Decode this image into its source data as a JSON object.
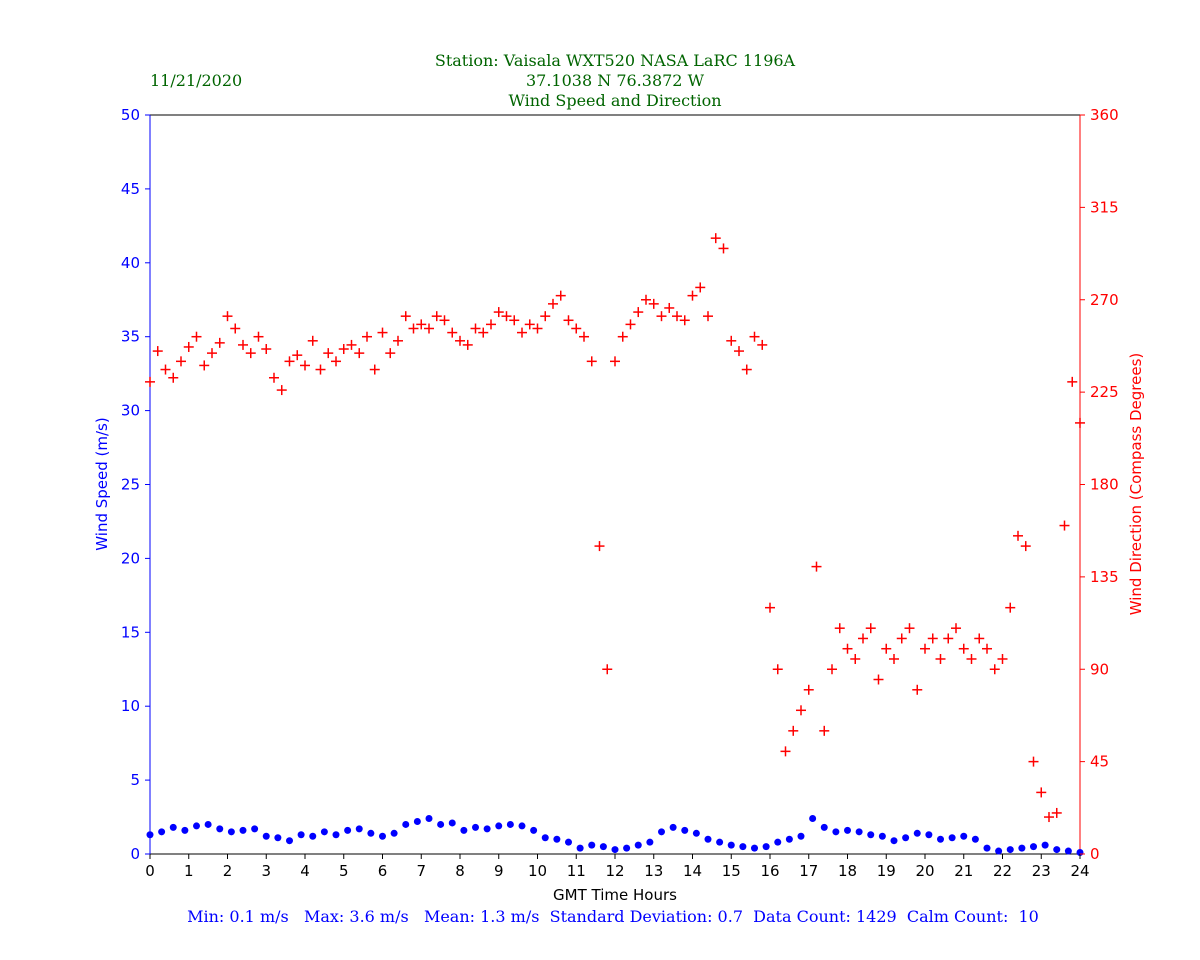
{
  "header": {
    "date": "11/21/2020",
    "title_line1": "Station:  Vaisala WXT520  NASA LaRC 1196A",
    "title_line2": "37.1038 N 76.3872 W",
    "title_line3": "Wind Speed and Direction"
  },
  "footer": {
    "stats": "Min: 0.1 m/s   Max: 3.6 m/s   Mean: 1.3 m/s  Standard Deviation: 0.7  Data Count: 1429  Calm Count:  10"
  },
  "colors": {
    "title": "#006400",
    "speed": "#0000ff",
    "direction": "#ff0000",
    "axis": "#000000"
  },
  "chart_data": {
    "type": "scatter",
    "title": "Wind Speed and Direction",
    "xlabel": "GMT Time Hours",
    "ylabel": "Wind Speed (m/s)",
    "y2label": "Wind Direction (Compass Degrees)",
    "xlim": [
      0,
      24
    ],
    "ylim": [
      0,
      50
    ],
    "y2lim": [
      0,
      360
    ],
    "x_ticks": [
      "0",
      "1",
      "2",
      "3",
      "4",
      "5",
      "6",
      "7",
      "8",
      "9",
      "10",
      "11",
      "12",
      "13",
      "14",
      "15",
      "16",
      "17",
      "18",
      "19",
      "20",
      "21",
      "22",
      "23",
      "24"
    ],
    "y_ticks": [
      "0",
      "5",
      "10",
      "15",
      "20",
      "25",
      "30",
      "35",
      "40",
      "45",
      "50"
    ],
    "y2_ticks": [
      "0",
      "45",
      "90",
      "135",
      "180",
      "225",
      "270",
      "315",
      "360"
    ],
    "grid": false,
    "series": [
      {
        "name": "Wind Speed",
        "axis": "left",
        "marker": "circle",
        "color": "#0000ff",
        "x": [
          0.0,
          0.3,
          0.6,
          0.9,
          1.2,
          1.5,
          1.8,
          2.1,
          2.4,
          2.7,
          3.0,
          3.3,
          3.6,
          3.9,
          4.2,
          4.5,
          4.8,
          5.1,
          5.4,
          5.7,
          6.0,
          6.3,
          6.6,
          6.9,
          7.2,
          7.5,
          7.8,
          8.1,
          8.4,
          8.7,
          9.0,
          9.3,
          9.6,
          9.9,
          10.2,
          10.5,
          10.8,
          11.1,
          11.4,
          11.7,
          12.0,
          12.3,
          12.6,
          12.9,
          13.2,
          13.5,
          13.8,
          14.1,
          14.4,
          14.7,
          15.0,
          15.3,
          15.6,
          15.9,
          16.2,
          16.5,
          16.8,
          17.1,
          17.4,
          17.7,
          18.0,
          18.3,
          18.6,
          18.9,
          19.2,
          19.5,
          19.8,
          20.1,
          20.4,
          20.7,
          21.0,
          21.3,
          21.6,
          21.9,
          22.2,
          22.5,
          22.8,
          23.1,
          23.4,
          23.7,
          24.0
        ],
        "values": [
          1.3,
          1.5,
          1.8,
          1.6,
          1.9,
          2.0,
          1.7,
          1.5,
          1.6,
          1.7,
          1.2,
          1.1,
          0.9,
          1.3,
          1.2,
          1.5,
          1.3,
          1.6,
          1.7,
          1.4,
          1.2,
          1.4,
          2.0,
          2.2,
          2.4,
          2.0,
          2.1,
          1.6,
          1.8,
          1.7,
          1.9,
          2.0,
          1.9,
          1.6,
          1.1,
          1.0,
          0.8,
          0.4,
          0.6,
          0.5,
          0.3,
          0.4,
          0.6,
          0.8,
          1.5,
          1.8,
          1.6,
          1.4,
          1.0,
          0.8,
          0.6,
          0.5,
          0.4,
          0.5,
          0.8,
          1.0,
          1.2,
          2.4,
          1.8,
          1.5,
          1.6,
          1.5,
          1.3,
          1.2,
          0.9,
          1.1,
          1.4,
          1.3,
          1.0,
          1.1,
          1.2,
          1.0,
          0.4,
          0.2,
          0.3,
          0.4,
          0.5,
          0.6,
          0.3,
          0.2,
          0.1
        ]
      },
      {
        "name": "Wind Direction",
        "axis": "right",
        "marker": "plus",
        "color": "#ff0000",
        "x": [
          0.0,
          0.2,
          0.4,
          0.6,
          0.8,
          1.0,
          1.2,
          1.4,
          1.6,
          1.8,
          2.0,
          2.2,
          2.4,
          2.6,
          2.8,
          3.0,
          3.2,
          3.4,
          3.6,
          3.8,
          4.0,
          4.2,
          4.4,
          4.6,
          4.8,
          5.0,
          5.2,
          5.4,
          5.6,
          5.8,
          6.0,
          6.2,
          6.4,
          6.6,
          6.8,
          7.0,
          7.2,
          7.4,
          7.6,
          7.8,
          8.0,
          8.2,
          8.4,
          8.6,
          8.8,
          9.0,
          9.2,
          9.4,
          9.6,
          9.8,
          10.0,
          10.2,
          10.4,
          10.6,
          10.8,
          11.0,
          11.2,
          11.4,
          11.6,
          11.8,
          12.0,
          12.2,
          12.4,
          12.6,
          12.8,
          13.0,
          13.2,
          13.4,
          13.6,
          13.8,
          14.0,
          14.2,
          14.4,
          14.6,
          14.8,
          15.0,
          15.2,
          15.4,
          15.6,
          15.8,
          16.0,
          16.2,
          16.4,
          16.6,
          16.8,
          17.0,
          17.2,
          17.4,
          17.6,
          17.8,
          18.0,
          18.2,
          18.4,
          18.6,
          18.8,
          19.0,
          19.2,
          19.4,
          19.6,
          19.8,
          20.0,
          20.2,
          20.4,
          20.6,
          20.8,
          21.0,
          21.2,
          21.4,
          21.6,
          21.8,
          22.0,
          22.2,
          22.4,
          22.6,
          22.8,
          23.0,
          23.2,
          23.4,
          23.6,
          23.8,
          24.0
        ],
        "values": [
          230,
          245,
          236,
          232,
          240,
          247,
          252,
          238,
          244,
          249,
          262,
          256,
          248,
          244,
          252,
          246,
          232,
          226,
          240,
          243,
          238,
          250,
          236,
          244,
          240,
          246,
          248,
          244,
          252,
          236,
          254,
          244,
          250,
          262,
          256,
          258,
          256,
          262,
          260,
          254,
          250,
          248,
          256,
          254,
          258,
          264,
          262,
          260,
          254,
          258,
          256,
          262,
          268,
          272,
          260,
          256,
          252,
          240,
          150,
          90,
          240,
          252,
          258,
          264,
          270,
          268,
          262,
          266,
          262,
          260,
          272,
          276,
          262,
          300,
          295,
          250,
          245,
          236,
          252,
          248,
          120,
          90,
          50,
          60,
          70,
          80,
          140,
          60,
          90,
          110,
          100,
          95,
          105,
          110,
          85,
          100,
          95,
          105,
          110,
          80,
          100,
          105,
          95,
          105,
          110,
          100,
          95,
          105,
          100,
          90,
          95,
          120,
          155,
          150,
          45,
          30,
          18,
          20,
          160,
          230,
          210
        ]
      }
    ]
  }
}
